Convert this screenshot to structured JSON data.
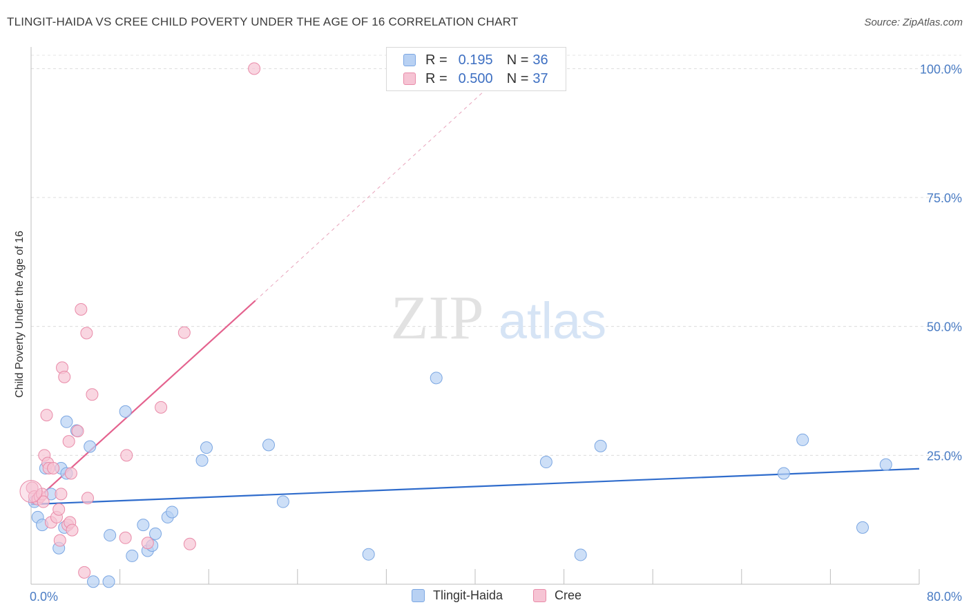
{
  "header": {
    "title": "TLINGIT-HAIDA VS CREE CHILD POVERTY UNDER THE AGE OF 16 CORRELATION CHART",
    "source": "Source: ZipAtlas.com"
  },
  "watermark": {
    "zip": "ZIP",
    "atlas": "atlas"
  },
  "colors": {
    "blue_fill": "#b8d1f3",
    "blue_stroke": "#7aa6e2",
    "blue_line": "#2f6ccc",
    "pink_fill": "#f6c4d4",
    "pink_stroke": "#e98aa8",
    "pink_line": "#e4628e",
    "tick_text": "#4a7cc4"
  },
  "legend": {
    "rows": [
      {
        "r_label": "R =",
        "r_value": "0.195",
        "n_label": "N =",
        "n_value": "36"
      },
      {
        "r_label": "R =",
        "r_value": "0.500",
        "n_label": "N =",
        "n_value": "37"
      }
    ]
  },
  "chart_data": {
    "type": "scatter",
    "title": "TLINGIT-HAIDA VS CREE CHILD POVERTY UNDER THE AGE OF 16 CORRELATION CHART",
    "xlabel": "",
    "ylabel": "Child Poverty Under the Age of 16",
    "xlim": [
      0,
      80
    ],
    "ylim": [
      0,
      105
    ],
    "x_tick_labels": [
      "0.0%",
      "80.0%"
    ],
    "y_ticks": [
      25,
      50,
      75,
      100
    ],
    "y_tick_labels": [
      "25.0%",
      "50.0%",
      "75.0%",
      "100.0%"
    ],
    "legend_position": "top-center",
    "series": [
      {
        "name": "Tlingit-Haida",
        "color": "#b8d1f3",
        "points": [
          [
            0.3,
            16.0
          ],
          [
            0.6,
            13.0
          ],
          [
            1.0,
            11.5
          ],
          [
            1.3,
            22.5
          ],
          [
            1.8,
            17.5
          ],
          [
            2.5,
            7.0
          ],
          [
            2.7,
            22.5
          ],
          [
            3.0,
            11.0
          ],
          [
            3.2,
            21.5
          ],
          [
            3.2,
            31.5
          ],
          [
            4.1,
            29.8
          ],
          [
            5.3,
            26.7
          ],
          [
            5.6,
            0.5
          ],
          [
            7.0,
            0.5
          ],
          [
            7.1,
            9.5
          ],
          [
            8.5,
            33.5
          ],
          [
            9.1,
            5.5
          ],
          [
            10.1,
            11.5
          ],
          [
            10.5,
            6.5
          ],
          [
            10.9,
            7.5
          ],
          [
            11.2,
            9.8
          ],
          [
            12.3,
            13.0
          ],
          [
            12.7,
            14.0
          ],
          [
            15.4,
            24.0
          ],
          [
            15.8,
            26.5
          ],
          [
            21.4,
            27.0
          ],
          [
            22.7,
            16.0
          ],
          [
            30.4,
            5.8
          ],
          [
            36.5,
            40.0
          ],
          [
            46.4,
            23.7
          ],
          [
            49.5,
            5.7
          ],
          [
            51.3,
            26.8
          ],
          [
            67.8,
            21.5
          ],
          [
            69.5,
            28.0
          ],
          [
            74.9,
            11.0
          ],
          [
            77.0,
            23.2
          ]
        ]
      },
      {
        "name": "Cree",
        "color": "#f6c4d4",
        "points": [
          [
            0.1,
            18.7
          ],
          [
            0.3,
            17.0
          ],
          [
            0.6,
            16.5
          ],
          [
            0.8,
            17.0
          ],
          [
            1.0,
            17.5
          ],
          [
            1.1,
            16.0
          ],
          [
            1.2,
            25.0
          ],
          [
            1.4,
            32.8
          ],
          [
            1.5,
            23.5
          ],
          [
            1.6,
            22.5
          ],
          [
            1.8,
            12.0
          ],
          [
            2.0,
            22.5
          ],
          [
            2.3,
            13.0
          ],
          [
            2.5,
            14.5
          ],
          [
            2.6,
            8.5
          ],
          [
            2.7,
            17.5
          ],
          [
            2.8,
            42.0
          ],
          [
            3.0,
            40.2
          ],
          [
            3.3,
            11.5
          ],
          [
            3.4,
            27.7
          ],
          [
            3.5,
            12.0
          ],
          [
            3.6,
            21.5
          ],
          [
            3.7,
            10.5
          ],
          [
            4.2,
            29.7
          ],
          [
            4.5,
            53.3
          ],
          [
            4.8,
            2.3
          ],
          [
            5.0,
            48.7
          ],
          [
            5.1,
            16.7
          ],
          [
            5.5,
            36.8
          ],
          [
            8.5,
            9.0
          ],
          [
            8.6,
            25.0
          ],
          [
            10.5,
            8.0
          ],
          [
            11.7,
            34.3
          ],
          [
            13.8,
            48.8
          ],
          [
            14.3,
            7.8
          ],
          [
            20.1,
            100.0
          ],
          [
            0.0,
            18.0
          ]
        ]
      }
    ],
    "trend_lines": [
      {
        "series": "Tlingit-Haida",
        "from": [
          0,
          15.5
        ],
        "to": [
          80,
          22.4
        ],
        "style": "solid"
      },
      {
        "series": "Cree",
        "from": [
          0,
          15.5
        ],
        "to": [
          20.2,
          55.0
        ],
        "style": "solid"
      },
      {
        "series": "Cree",
        "from": [
          20.2,
          55.0
        ],
        "to": [
          42.0,
          98.0
        ],
        "style": "dashed"
      }
    ]
  }
}
